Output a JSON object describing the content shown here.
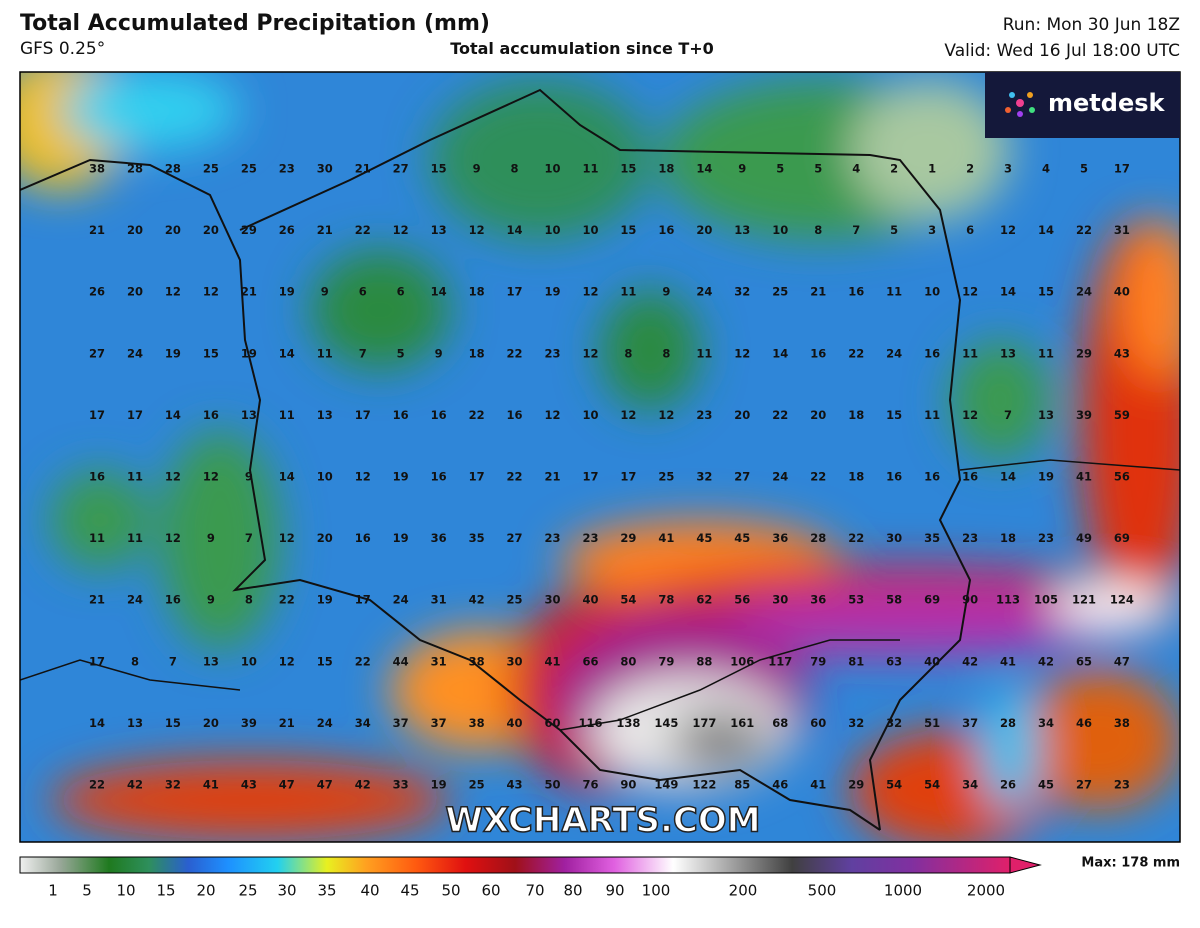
{
  "header": {
    "title": "Total Accumulated Precipitation (mm)",
    "model": "GFS 0.25°",
    "subtitle": "Total accumulation since T+0",
    "run": "Run: Mon 30 Jun 18Z",
    "valid": "Valid: Wed 16 Jul 18:00 UTC"
  },
  "logo": "metdesk",
  "watermark": "WXCHARTS.COM",
  "grid": {
    "rows": [
      [
        38,
        28,
        28,
        25,
        25,
        23,
        30,
        21,
        27,
        15,
        9,
        8,
        10,
        11,
        15,
        18,
        14,
        9,
        5,
        5,
        4,
        2,
        1,
        2,
        3,
        4,
        5,
        17
      ],
      [
        21,
        20,
        20,
        20,
        29,
        26,
        21,
        22,
        12,
        13,
        12,
        14,
        10,
        10,
        15,
        16,
        20,
        13,
        10,
        8,
        7,
        5,
        3,
        6,
        12,
        14,
        22,
        31
      ],
      [
        26,
        20,
        12,
        12,
        21,
        19,
        9,
        6,
        6,
        14,
        18,
        17,
        19,
        12,
        11,
        9,
        24,
        32,
        25,
        21,
        16,
        11,
        10,
        12,
        14,
        15,
        24,
        40
      ],
      [
        27,
        24,
        19,
        15,
        19,
        14,
        11,
        7,
        5,
        9,
        18,
        22,
        23,
        12,
        8,
        8,
        11,
        12,
        14,
        16,
        22,
        24,
        16,
        11,
        13,
        11,
        29,
        43
      ],
      [
        17,
        17,
        14,
        16,
        13,
        11,
        13,
        17,
        16,
        16,
        22,
        16,
        12,
        10,
        12,
        12,
        23,
        20,
        22,
        20,
        18,
        15,
        11,
        12,
        7,
        13,
        39,
        59
      ],
      [
        16,
        11,
        12,
        12,
        9,
        14,
        10,
        12,
        19,
        16,
        17,
        22,
        21,
        17,
        17,
        25,
        32,
        27,
        24,
        22,
        18,
        16,
        16,
        16,
        14,
        19,
        41,
        56
      ],
      [
        11,
        11,
        12,
        9,
        7,
        12,
        20,
        16,
        19,
        36,
        35,
        27,
        23,
        23,
        29,
        41,
        45,
        45,
        36,
        28,
        22,
        30,
        35,
        23,
        18,
        23,
        49,
        69
      ],
      [
        21,
        24,
        16,
        9,
        8,
        22,
        19,
        17,
        24,
        31,
        42,
        25,
        30,
        40,
        54,
        78,
        62,
        56,
        30,
        36,
        53,
        58,
        69,
        90,
        113,
        105,
        121,
        124
      ],
      [
        17,
        8,
        7,
        13,
        10,
        12,
        15,
        22,
        44,
        31,
        38,
        30,
        41,
        66,
        80,
        79,
        88,
        106,
        117,
        79,
        81,
        63,
        40,
        42,
        41,
        42,
        65,
        47
      ],
      [
        14,
        13,
        15,
        20,
        39,
        21,
        24,
        34,
        37,
        37,
        38,
        40,
        60,
        116,
        138,
        145,
        177,
        161,
        68,
        60,
        32,
        32,
        51,
        37,
        28,
        34,
        46,
        38
      ],
      [
        22,
        42,
        32,
        41,
        43,
        47,
        47,
        42,
        33,
        19,
        25,
        43,
        50,
        76,
        90,
        149,
        122,
        85,
        46,
        41,
        29,
        54,
        54,
        34,
        26,
        45,
        27,
        23
      ]
    ]
  },
  "legend": {
    "labels": [
      1,
      5,
      10,
      15,
      20,
      25,
      30,
      35,
      40,
      45,
      50,
      60,
      70,
      80,
      90,
      100,
      200,
      500,
      1000,
      2000
    ],
    "max": "Max: 178 mm"
  }
}
